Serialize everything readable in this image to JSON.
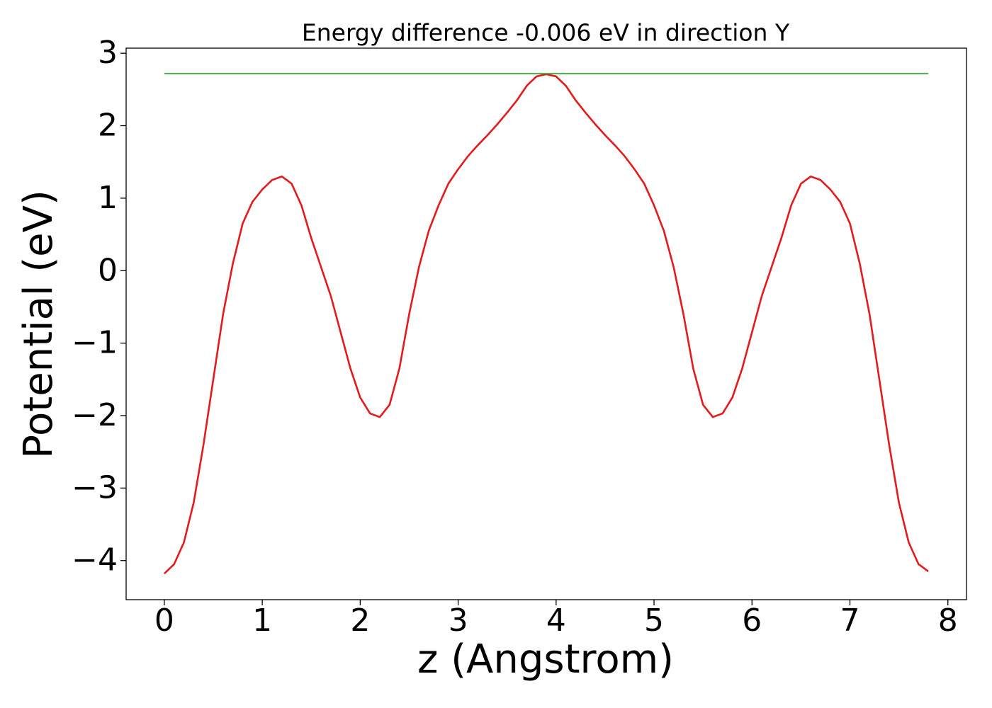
{
  "chart_data": {
    "type": "line",
    "title": "Energy difference -0.006 eV in direction Y",
    "x_label": "z (Angstrom)",
    "y_label": "Potential (eV)",
    "xlim": [
      -0.39,
      8.19
    ],
    "ylim": [
      -4.54,
      3.07
    ],
    "xticks": [
      0,
      1,
      2,
      3,
      4,
      5,
      6,
      7,
      8
    ],
    "yticks": [
      {
        "value": -4,
        "label": "−4"
      },
      {
        "value": -3,
        "label": "−3"
      },
      {
        "value": -2,
        "label": "−2"
      },
      {
        "value": -1,
        "label": "−1"
      },
      0,
      1,
      2,
      3
    ],
    "grid": false,
    "series": [
      {
        "color": "#e41a1c",
        "x": [
          0,
          0.1,
          0.2,
          0.3,
          0.4,
          0.5,
          0.6,
          0.7,
          0.8,
          0.9,
          1,
          1.1,
          1.2,
          1.3,
          1.4,
          1.5,
          1.6,
          1.7,
          1.8,
          1.9,
          2,
          2.1,
          2.2,
          2.3,
          2.4,
          2.5,
          2.6,
          2.7,
          2.8,
          2.9,
          3,
          3.1,
          3.2,
          3.3,
          3.4,
          3.5,
          3.6,
          3.7,
          3.8,
          3.9,
          4,
          4.1,
          4.2,
          4.3,
          4.4,
          4.5,
          4.6,
          4.7,
          4.8,
          4.9,
          5,
          5.1,
          5.2,
          5.3,
          5.4,
          5.5,
          5.6,
          5.7,
          5.8,
          5.9,
          6,
          6.1,
          6.2,
          6.3,
          6.4,
          6.5,
          6.6,
          6.7,
          6.8,
          6.9,
          7,
          7.1,
          7.2,
          7.3,
          7.4,
          7.5,
          7.6,
          7.7,
          7.8
        ],
        "values": [
          -4.18,
          -4.05,
          -3.75,
          -3.2,
          -2.4,
          -1.5,
          -0.6,
          0.1,
          0.65,
          0.95,
          1.12,
          1.25,
          1.3,
          1.2,
          0.9,
          0.45,
          0.05,
          -0.35,
          -0.85,
          -1.35,
          -1.75,
          -1.97,
          -2.02,
          -1.85,
          -1.35,
          -0.6,
          0.05,
          0.55,
          0.9,
          1.2,
          1.4,
          1.58,
          1.73,
          1.87,
          2.02,
          2.18,
          2.35,
          2.55,
          2.68,
          2.71,
          2.68,
          2.55,
          2.35,
          2.18,
          2.02,
          1.87,
          1.73,
          1.58,
          1.4,
          1.2,
          0.9,
          0.55,
          0.05,
          -0.6,
          -1.35,
          -1.85,
          -2.02,
          -1.97,
          -1.75,
          -1.35,
          -0.85,
          -0.35,
          0.05,
          0.45,
          0.9,
          1.2,
          1.3,
          1.25,
          1.12,
          0.95,
          0.65,
          0.1,
          -0.6,
          -1.5,
          -2.4,
          -3.2,
          -3.75,
          -4.05,
          -4.15
        ]
      },
      {
        "color": "#4daf4a",
        "x": [
          0,
          7.8
        ],
        "values": [
          2.72,
          2.72
        ]
      }
    ]
  }
}
